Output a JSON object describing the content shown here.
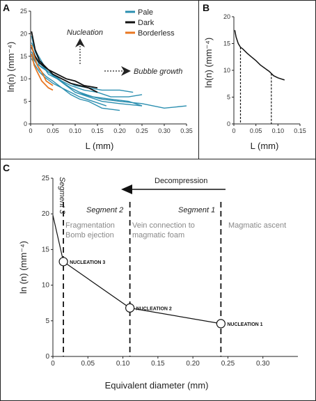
{
  "colors": {
    "pale": "#2b8fb0",
    "dark": "#111111",
    "borderless": "#e87722"
  },
  "panel_a": {
    "letter": "A",
    "nucleation_label": "Nucleation",
    "growth_label": "Bubble growth"
  },
  "panel_b": {
    "letter": "B"
  },
  "panel_c": {
    "letter": "C",
    "decompression_label": "Decompression",
    "segment3_label": "Segment 3",
    "segment2_label": "Segment 2",
    "segment1_label": "Segment 1",
    "segment2_desc": [
      "Fragmentation",
      "Bomb ejection"
    ],
    "segment1_desc": [
      "Vein connection to",
      "magmatic foam"
    ],
    "ascent_desc": "Magmatic ascent",
    "nucleation_labels": [
      "NUCLEATION 3",
      "NUCLEATION 2",
      "NUCLEATION 1"
    ]
  },
  "chart_data": [
    {
      "panel": "A",
      "type": "line",
      "xlabel": "L (mm)",
      "ylabel": "ln(n) (mm⁻⁴)",
      "xlim": [
        0,
        0.35
      ],
      "ylim": [
        0,
        25
      ],
      "xticks": [
        "0",
        "0.05",
        "0.10",
        "0.15",
        "0.20",
        "0.25",
        "0.30",
        "0.35"
      ],
      "yticks": [
        "0",
        "5",
        "10",
        "15",
        "20",
        "25"
      ],
      "legend": [
        "Pale",
        "Dark",
        "Borderless"
      ],
      "legend_position": "top-right",
      "series": [
        {
          "group": "Pale",
          "x": [
            0.002,
            0.01,
            0.02,
            0.03,
            0.04,
            0.06,
            0.08,
            0.1,
            0.13,
            0.16,
            0.2,
            0.25
          ],
          "y": [
            19.5,
            16,
            14,
            12.5,
            11,
            10,
            8.5,
            7,
            6,
            5,
            4.5,
            4
          ]
        },
        {
          "group": "Pale",
          "x": [
            0.002,
            0.01,
            0.02,
            0.04,
            0.06,
            0.08,
            0.11,
            0.14,
            0.18,
            0.22,
            0.25
          ],
          "y": [
            17.5,
            15,
            13,
            11.5,
            10,
            8.5,
            7,
            6,
            5.5,
            5,
            4
          ]
        },
        {
          "group": "Pale",
          "x": [
            0.002,
            0.015,
            0.03,
            0.05,
            0.07,
            0.09,
            0.12,
            0.15,
            0.18,
            0.22,
            0.25
          ],
          "y": [
            18,
            15.5,
            13,
            11,
            9.5,
            8.5,
            7.5,
            7,
            6,
            6,
            6.5
          ]
        },
        {
          "group": "Pale",
          "x": [
            0.002,
            0.01,
            0.025,
            0.04,
            0.06,
            0.09,
            0.12,
            0.16,
            0.2,
            0.25,
            0.3,
            0.35
          ],
          "y": [
            16,
            14.5,
            13,
            11.5,
            10,
            8,
            6.5,
            5.5,
            5,
            4.5,
            3.5,
            4
          ]
        },
        {
          "group": "Pale",
          "x": [
            0.002,
            0.01,
            0.02,
            0.035,
            0.05,
            0.07,
            0.09,
            0.11,
            0.13,
            0.16,
            0.2
          ],
          "y": [
            15.5,
            14,
            12,
            10.5,
            9.5,
            8,
            6.5,
            5.5,
            5,
            3.5,
            3
          ]
        },
        {
          "group": "Pale",
          "x": [
            0.002,
            0.01,
            0.02,
            0.03,
            0.05,
            0.07,
            0.09,
            0.11,
            0.14,
            0.17
          ],
          "y": [
            14.5,
            13,
            11.5,
            10.5,
            9,
            8,
            7,
            6,
            5,
            4
          ]
        },
        {
          "group": "Pale",
          "x": [
            0.002,
            0.012,
            0.025,
            0.04,
            0.06,
            0.08,
            0.1,
            0.13,
            0.16,
            0.2,
            0.23
          ],
          "y": [
            15,
            13.5,
            12.5,
            11.5,
            10.5,
            9.5,
            8.5,
            8,
            7.5,
            7.5,
            7
          ]
        },
        {
          "group": "Dark",
          "x": [
            0.002,
            0.01,
            0.02,
            0.035,
            0.05,
            0.07,
            0.09,
            0.11,
            0.13,
            0.15
          ],
          "y": [
            20.5,
            16.5,
            14,
            12.5,
            11,
            10,
            9,
            8.5,
            8,
            7
          ]
        },
        {
          "group": "Dark",
          "x": [
            0.002,
            0.01,
            0.02,
            0.04,
            0.06,
            0.08,
            0.1,
            0.12,
            0.15
          ],
          "y": [
            17,
            15,
            13.5,
            12,
            11,
            10,
            9.5,
            8.5,
            8
          ]
        },
        {
          "group": "Borderless",
          "x": [
            0.002,
            0.008,
            0.015,
            0.025,
            0.035,
            0.05
          ],
          "y": [
            17.5,
            15,
            13,
            11.5,
            9.5,
            8.5
          ]
        },
        {
          "group": "Borderless",
          "x": [
            0.002,
            0.008,
            0.015,
            0.025,
            0.04,
            0.05
          ],
          "y": [
            15.5,
            13,
            11.5,
            9.5,
            8,
            7.5
          ]
        }
      ]
    },
    {
      "panel": "B",
      "type": "line",
      "xlabel": "L (mm)",
      "ylabel": "ln(n) (mm⁻⁴)",
      "xlim": [
        0,
        0.15
      ],
      "ylim": [
        0,
        20
      ],
      "xticks": [
        "0",
        "0.05",
        "0.10",
        "0.15"
      ],
      "yticks": [
        "0",
        "5",
        "10",
        "15",
        "20"
      ],
      "series": [
        {
          "x": [
            0.002,
            0.005,
            0.01,
            0.015,
            0.02,
            0.03,
            0.04,
            0.05,
            0.06,
            0.07,
            0.08,
            0.09,
            0.1,
            0.115
          ],
          "y": [
            17.5,
            16.2,
            15,
            14.3,
            14,
            13.2,
            12.5,
            11.8,
            11,
            10.4,
            9.8,
            9,
            8.6,
            8.2
          ]
        }
      ],
      "markers_x": [
        0.015,
        0.085
      ]
    },
    {
      "panel": "C",
      "type": "line",
      "xlabel": "Equivalent diameter (mm)",
      "ylabel": "ln (n) (mm⁻⁴)",
      "xlim": [
        0,
        0.35
      ],
      "ylim": [
        0,
        25
      ],
      "xticks": [
        "0",
        "0.05",
        "0.10",
        "0.15",
        "0.20",
        "0.25",
        "0.30"
      ],
      "yticks": [
        "0",
        "5",
        "10",
        "15",
        "20",
        "25"
      ],
      "series": [
        {
          "x": [
            0,
            0.015,
            0.11,
            0.24
          ],
          "y": [
            19.8,
            13.3,
            6.8,
            4.6
          ]
        }
      ],
      "nucleation_points": [
        {
          "label": "NUCLEATION 3",
          "x": 0.015,
          "y": 13.3
        },
        {
          "label": "NUCLEATION 2",
          "x": 0.11,
          "y": 6.8
        },
        {
          "label": "NUCLEATION 1",
          "x": 0.24,
          "y": 4.6
        }
      ],
      "segment_boundaries_x": [
        0.015,
        0.11,
        0.24
      ]
    }
  ]
}
